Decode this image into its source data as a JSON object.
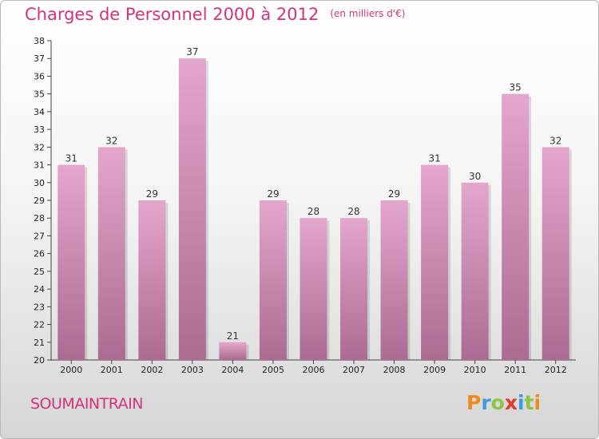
{
  "chart_data": {
    "type": "bar",
    "title": "Charges de Personnel 2000 à 2012",
    "unit": "(en milliers d'€)",
    "categories": [
      "2000",
      "2001",
      "2002",
      "2003",
      "2004",
      "2005",
      "2006",
      "2007",
      "2008",
      "2009",
      "2010",
      "2011",
      "2012"
    ],
    "values": [
      31,
      32,
      29,
      37,
      21,
      29,
      28,
      28,
      29,
      31,
      30,
      35,
      32
    ],
    "ylim": [
      20,
      38
    ],
    "yticks": [
      20,
      21,
      22,
      23,
      24,
      25,
      26,
      27,
      28,
      29,
      30,
      31,
      32,
      33,
      34,
      35,
      36,
      37,
      38
    ],
    "grid": false,
    "colors": {
      "bar_light": "#e3a6cc",
      "bar_dark": "#ac6b92",
      "title": "#d5327b"
    }
  },
  "footer": {
    "commune": "SOUMAINTRAIN",
    "logo_letters": [
      {
        "ch": "P",
        "color": "#f08a1d"
      },
      {
        "ch": "r",
        "color": "#3d9be0"
      },
      {
        "ch": "o",
        "color": "#8cc63f"
      },
      {
        "ch": "x",
        "color": "#e33a2b"
      },
      {
        "ch": "i",
        "color": "#3d9be0"
      },
      {
        "ch": "t",
        "color": "#8cc63f"
      },
      {
        "ch": "i",
        "color": "#f08a1d"
      }
    ]
  }
}
